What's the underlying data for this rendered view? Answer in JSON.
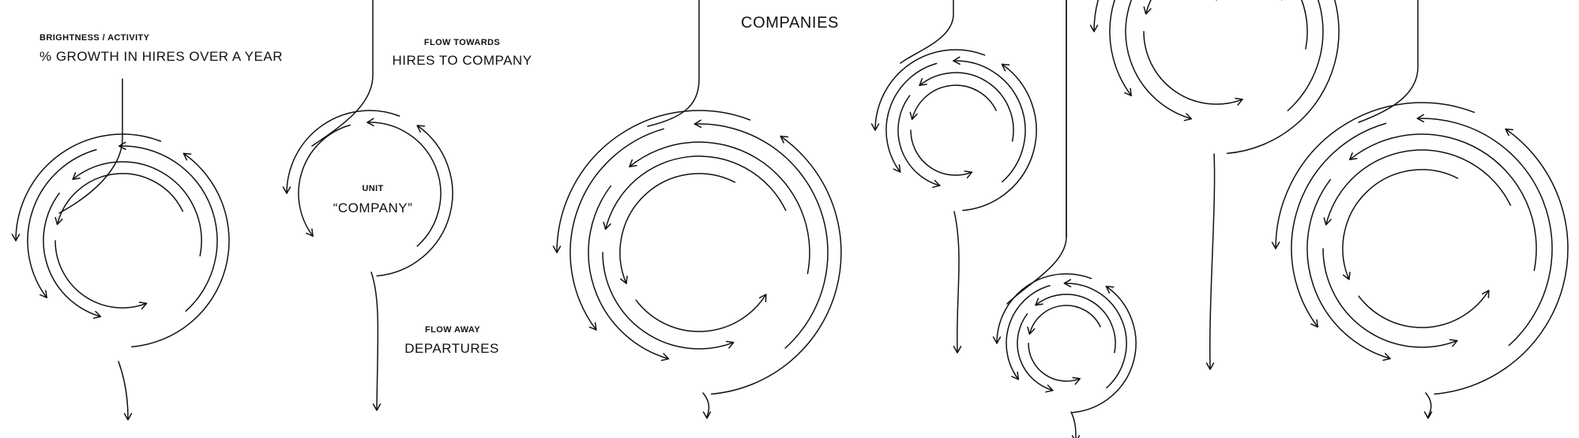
{
  "legend": {
    "brightness_heading": "BRIGHTNESS / ACTIVITY",
    "brightness_text": "% GROWTH IN HIRES OVER A YEAR",
    "flow_towards_heading": "FLOW TOWARDS",
    "flow_towards_text": "HIRES TO COMPANY",
    "unit_heading": "UNIT",
    "unit_text": "“COMPANY”",
    "flow_away_heading": "FLOW AWAY",
    "flow_away_text": "DEPARTURES"
  },
  "main": {
    "title": "COMPANIES"
  },
  "colors": {
    "stroke": "#111111",
    "background": "#ffffff"
  }
}
